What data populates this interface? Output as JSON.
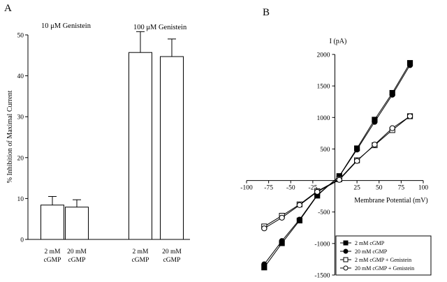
{
  "panels": {
    "a_label": "A",
    "b_label": "B"
  },
  "chart_data": [
    {
      "type": "bar",
      "ylabel": "% Inhibition of Maximal Current",
      "ylim": [
        0,
        50
      ],
      "yticks": [
        0,
        10,
        20,
        30,
        40,
        50
      ],
      "groups": [
        {
          "label": "10 μM Genistein",
          "bars": [
            {
              "line1": "2 mM",
              "line2": "cGMP",
              "value": 8.4,
              "error": 2.1
            },
            {
              "line1": "20 mM",
              "line2": "cGMP",
              "value": 7.9,
              "error": 1.8
            }
          ]
        },
        {
          "label": "100 μM Genistein",
          "bars": [
            {
              "line1": "2 mM",
              "line2": "cGMP",
              "value": 45.7,
              "error": 5.1
            },
            {
              "line1": "20 mM",
              "line2": "cGMP",
              "value": 44.7,
              "error": 4.3
            }
          ]
        }
      ],
      "grid": false
    },
    {
      "type": "scatter",
      "xlabel": "Membrane Potential (mV)",
      "ylabel": "I (pA)",
      "xlim": [
        -100,
        100
      ],
      "ylim": [
        -1500,
        2000
      ],
      "xticks": [
        -100,
        -75,
        -50,
        -25,
        0,
        25,
        50,
        75,
        100
      ],
      "yticks": [
        -1500,
        -1000,
        -500,
        500,
        1000,
        1500,
        2000
      ],
      "grid": false,
      "legend_position": "bottom-right",
      "series": [
        {
          "name": "2 mM cGMP",
          "marker": "square-filled",
          "x": [
            -80,
            -60,
            -40,
            -20,
            5,
            25,
            45,
            65,
            85
          ],
          "y": [
            -1380,
            -995,
            -635,
            -240,
            70,
            510,
            965,
            1390,
            1865
          ]
        },
        {
          "name": "20 mM cGMP",
          "marker": "circle-filled",
          "x": [
            -80,
            -60,
            -40,
            -20,
            5,
            25,
            45,
            65,
            85
          ],
          "y": [
            -1330,
            -960,
            -620,
            -230,
            65,
            490,
            930,
            1360,
            1830
          ]
        },
        {
          "name": "2 mM cGMP + Genistein",
          "marker": "square-open",
          "x": [
            -80,
            -60,
            -40,
            -20,
            5,
            25,
            45,
            65,
            85
          ],
          "y": [
            -730,
            -560,
            -380,
            -170,
            20,
            320,
            560,
            800,
            1020
          ]
        },
        {
          "name": "20 mM cGMP + Genistein",
          "marker": "circle-open",
          "x": [
            -80,
            -60,
            -40,
            -20,
            5,
            25,
            45,
            65,
            85
          ],
          "y": [
            -760,
            -590,
            -390,
            -180,
            10,
            310,
            570,
            830,
            1020
          ]
        }
      ]
    }
  ]
}
